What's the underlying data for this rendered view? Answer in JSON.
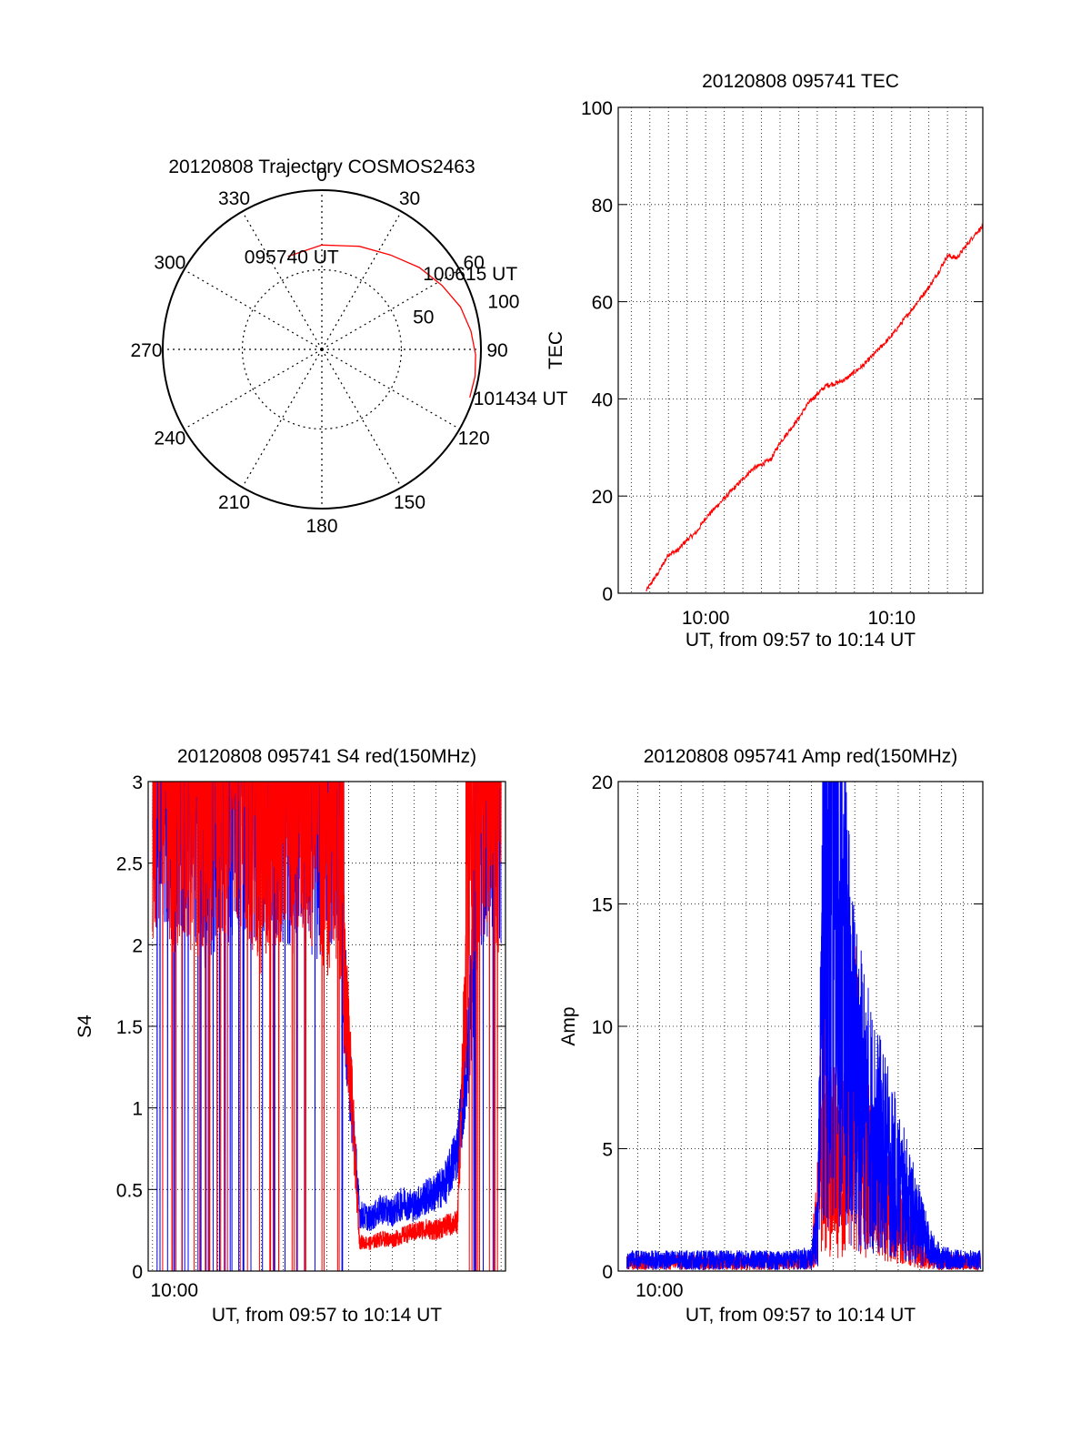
{
  "chart_data": [
    {
      "type": "polar",
      "title": "20120808 Trajectory COSMOS2463",
      "azimuth_labels": [
        "0",
        "30",
        "60",
        "90",
        "120",
        "150",
        "180",
        "210",
        "240",
        "270",
        "300",
        "330"
      ],
      "elevation_labels": [
        "50",
        "100"
      ],
      "series": [
        {
          "color": "#ff0000",
          "points": [
            {
              "az": 340,
              "el": 34
            },
            {
              "az": 0,
              "el": 31
            },
            {
              "az": 20,
              "el": 28
            },
            {
              "az": 36,
              "el": 24
            },
            {
              "az": 50,
              "el": 18
            },
            {
              "az": 62,
              "el": 13
            },
            {
              "az": 73,
              "el": 8
            },
            {
              "az": 83,
              "el": 5
            },
            {
              "az": 92,
              "el": 3
            },
            {
              "az": 100,
              "el": 2
            },
            {
              "az": 108,
              "el": 2
            }
          ]
        }
      ],
      "annotations": [
        {
          "text": "095740 UT",
          "az": 340,
          "el": 34
        },
        {
          "text": "100615 UT",
          "az": 52,
          "el": 20
        },
        {
          "text": "101434 UT",
          "az": 108,
          "el": 2
        }
      ]
    },
    {
      "type": "line",
      "title": "20120808 095741 TEC",
      "xlabel": "UT, from 09:57 to 10:14 UT",
      "ylabel": "TEC",
      "xlim": [
        595.3,
        614.9
      ],
      "ylim": [
        0,
        100
      ],
      "yticks": [
        "0",
        "20",
        "40",
        "60",
        "80",
        "100"
      ],
      "xticks": [
        {
          "x": 600,
          "label": "10:00"
        },
        {
          "x": 610,
          "label": "10:10"
        }
      ],
      "grid": true,
      "series": [
        {
          "color": "#ff0000",
          "x": [
            596.8,
            597.5,
            598.0,
            598.5,
            599.0,
            599.5,
            600.0,
            600.5,
            601.0,
            601.5,
            602.0,
            602.5,
            603.0,
            603.5,
            604.0,
            604.5,
            605.0,
            605.5,
            606.0,
            606.5,
            607.0,
            607.5,
            608.0,
            608.5,
            609.0,
            609.5,
            610.0,
            610.5,
            611.0,
            611.5,
            612.0,
            612.5,
            613.0,
            613.5,
            614.0,
            614.5,
            614.9
          ],
          "y": [
            0.5,
            4.5,
            8.0,
            8.8,
            11.0,
            12.5,
            15.5,
            17.5,
            19.5,
            21.5,
            23.5,
            25.5,
            26.5,
            27.5,
            31.0,
            33.5,
            36.0,
            39.0,
            41.0,
            42.8,
            43.2,
            44.0,
            45.5,
            47.0,
            49.0,
            51.0,
            53.0,
            55.5,
            58.0,
            60.5,
            63.0,
            66.0,
            69.5,
            69.0,
            71.5,
            74.0,
            75.5
          ]
        }
      ]
    },
    {
      "type": "line",
      "title": "20120808 095741 S4 red(150MHz)",
      "xlabel": "UT, from 09:57 to 10:14 UT",
      "ylabel": "S4",
      "xlim": [
        598.8,
        615.2
      ],
      "ylim": [
        0,
        3
      ],
      "yticks": [
        "0",
        "0.5",
        "1",
        "1.5",
        "2",
        "2.5",
        "3"
      ],
      "xticks": [
        {
          "x": 600,
          "label": "10:00"
        }
      ],
      "grid": true,
      "series": [
        {
          "color": "#0000ff",
          "x": [
            599.0,
            599.5,
            600.0,
            600.5,
            601.0,
            601.5,
            602.0,
            602.5,
            603.0,
            603.5,
            604.0,
            604.5,
            605.0,
            605.5,
            606.0,
            606.5,
            607.0,
            607.5,
            608.0,
            608.5,
            609.0,
            609.5,
            610.0,
            610.5,
            611.0,
            611.5,
            612.0,
            612.5,
            613.0,
            613.5,
            614.0,
            614.5,
            615.0
          ],
          "y": [
            2.6,
            2.7,
            2.5,
            2.7,
            2.6,
            2.4,
            2.6,
            2.5,
            2.7,
            2.5,
            2.6,
            2.7,
            2.6,
            2.5,
            2.6,
            2.4,
            2.6,
            2.5,
            1.3,
            0.35,
            0.32,
            0.38,
            0.36,
            0.42,
            0.4,
            0.45,
            0.48,
            0.55,
            0.75,
            1.4,
            2.5,
            2.7,
            2.6
          ]
        },
        {
          "color": "#ff0000",
          "x": [
            599.0,
            599.5,
            600.0,
            600.5,
            601.0,
            601.5,
            602.0,
            602.5,
            603.0,
            603.5,
            604.0,
            604.5,
            605.0,
            605.5,
            606.0,
            606.5,
            607.0,
            607.5,
            608.0,
            608.5,
            609.0,
            609.5,
            610.0,
            610.5,
            611.0,
            611.5,
            612.0,
            612.5,
            613.0,
            613.5,
            614.0,
            614.5,
            615.0
          ],
          "y": [
            2.6,
            2.8,
            2.5,
            2.6,
            2.4,
            2.7,
            2.5,
            2.6,
            2.7,
            2.6,
            2.4,
            2.6,
            2.5,
            2.7,
            2.5,
            2.6,
            2.4,
            2.5,
            1.4,
            0.18,
            0.17,
            0.2,
            0.19,
            0.22,
            0.24,
            0.26,
            0.25,
            0.28,
            0.3,
            2.3,
            2.6,
            2.7,
            2.5
          ]
        }
      ]
    },
    {
      "type": "line",
      "title": "20120808 095741 Amp red(150MHz)",
      "xlabel": "UT, from 09:57 to 10:14 UT",
      "ylabel": "Amp",
      "xlim": [
        598.1,
        614.9
      ],
      "ylim": [
        0,
        20
      ],
      "yticks": [
        "0",
        "5",
        "10",
        "15",
        "20"
      ],
      "xticks": [
        {
          "x": 600,
          "label": "10:00"
        }
      ],
      "grid": true,
      "series": [
        {
          "color": "#ff0000",
          "x": [
            598.5,
            600.0,
            602.0,
            604.0,
            606.0,
            607.0,
            607.3,
            607.5,
            607.8,
            608.2,
            608.6,
            609.0,
            609.5,
            610.0,
            610.5,
            611.0,
            611.5,
            612.0,
            613.0,
            614.0,
            614.8
          ],
          "y": [
            0.4,
            0.4,
            0.4,
            0.4,
            0.4,
            0.5,
            3.0,
            8.0,
            6.0,
            4.5,
            5.0,
            8.5,
            5.0,
            4.0,
            3.0,
            2.5,
            2.0,
            0.8,
            0.4,
            0.4,
            0.4
          ]
        },
        {
          "color": "#0000ff",
          "x": [
            598.5,
            600.0,
            602.0,
            604.0,
            606.0,
            607.0,
            607.3,
            607.6,
            607.9,
            608.2,
            608.5,
            608.8,
            609.2,
            609.6,
            610.0,
            610.5,
            611.0,
            611.5,
            612.0,
            612.5,
            613.0,
            614.0,
            614.8
          ],
          "y": [
            0.5,
            0.5,
            0.5,
            0.5,
            0.5,
            0.6,
            2.0,
            19.5,
            16.0,
            17.0,
            13.0,
            10.0,
            8.0,
            7.0,
            6.0,
            5.0,
            4.0,
            3.0,
            2.0,
            1.0,
            0.6,
            0.5,
            0.5
          ]
        }
      ]
    }
  ]
}
